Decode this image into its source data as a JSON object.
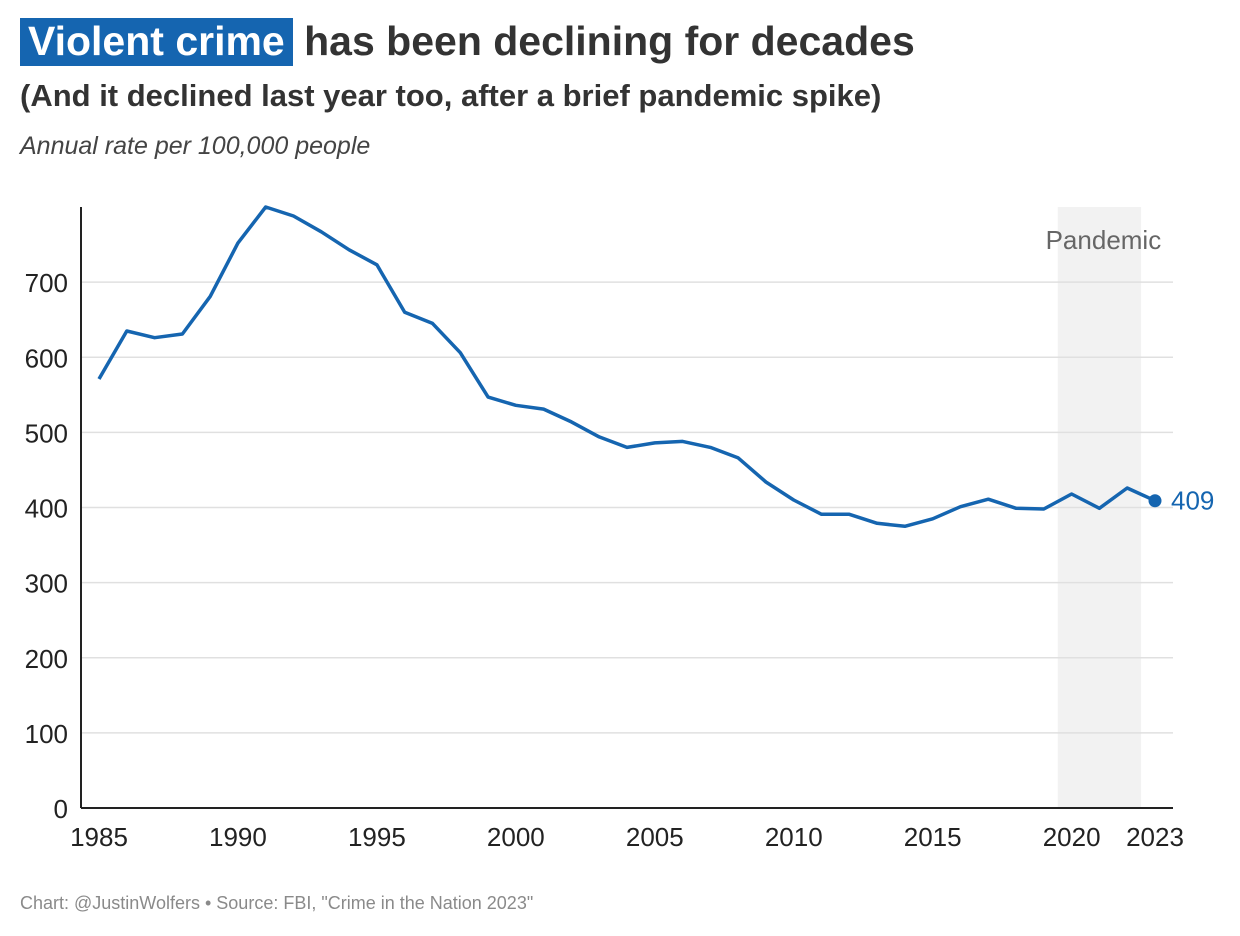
{
  "title": {
    "highlight": "Violent crime",
    "rest": " has been declining for decades"
  },
  "subtitle": "(And it declined last year too, after a brief pandemic spike)",
  "note": "Annual rate per 100,000 people",
  "footer": "Chart: @JustinWolfers • Source: FBI, \"Crime in the Nation 2023\"",
  "colors": {
    "line": "#1565b0",
    "highlight": "#1565b0",
    "band": "#f2f2f2",
    "grid": "#e0e0e0"
  },
  "chart_data": {
    "type": "line",
    "title": "Violent crime has been declining for decades",
    "ylabel": "Annual rate per 100,000 people",
    "xlabel": "",
    "ylim": [
      0,
      800
    ],
    "xlim": [
      1985,
      2023
    ],
    "yticks": [
      0,
      100,
      200,
      300,
      400,
      500,
      600,
      700
    ],
    "xticks": [
      1985,
      1990,
      1995,
      2000,
      2005,
      2010,
      2015,
      2020,
      2023
    ],
    "grid": true,
    "x": [
      1985,
      1986,
      1987,
      1988,
      1989,
      1990,
      1991,
      1992,
      1993,
      1994,
      1995,
      1996,
      1997,
      1998,
      1999,
      2000,
      2001,
      2002,
      2003,
      2004,
      2005,
      2006,
      2007,
      2008,
      2009,
      2010,
      2011,
      2012,
      2013,
      2014,
      2015,
      2016,
      2017,
      2018,
      2019,
      2020,
      2021,
      2022,
      2023
    ],
    "series": [
      {
        "name": "Violent crime rate",
        "values": [
          571,
          635,
          626,
          631,
          681,
          752,
          800,
          788,
          767,
          743,
          723,
          660,
          645,
          606,
          547,
          536,
          531,
          514,
          494,
          480,
          486,
          488,
          480,
          466,
          434,
          410,
          391,
          391,
          379,
          375,
          385,
          401,
          411,
          399,
          398,
          418,
          399,
          426,
          409
        ]
      }
    ],
    "end_label": "409",
    "annotations": [
      {
        "label": "Pandemic",
        "from": 2019.5,
        "to": 2022.5
      }
    ]
  }
}
